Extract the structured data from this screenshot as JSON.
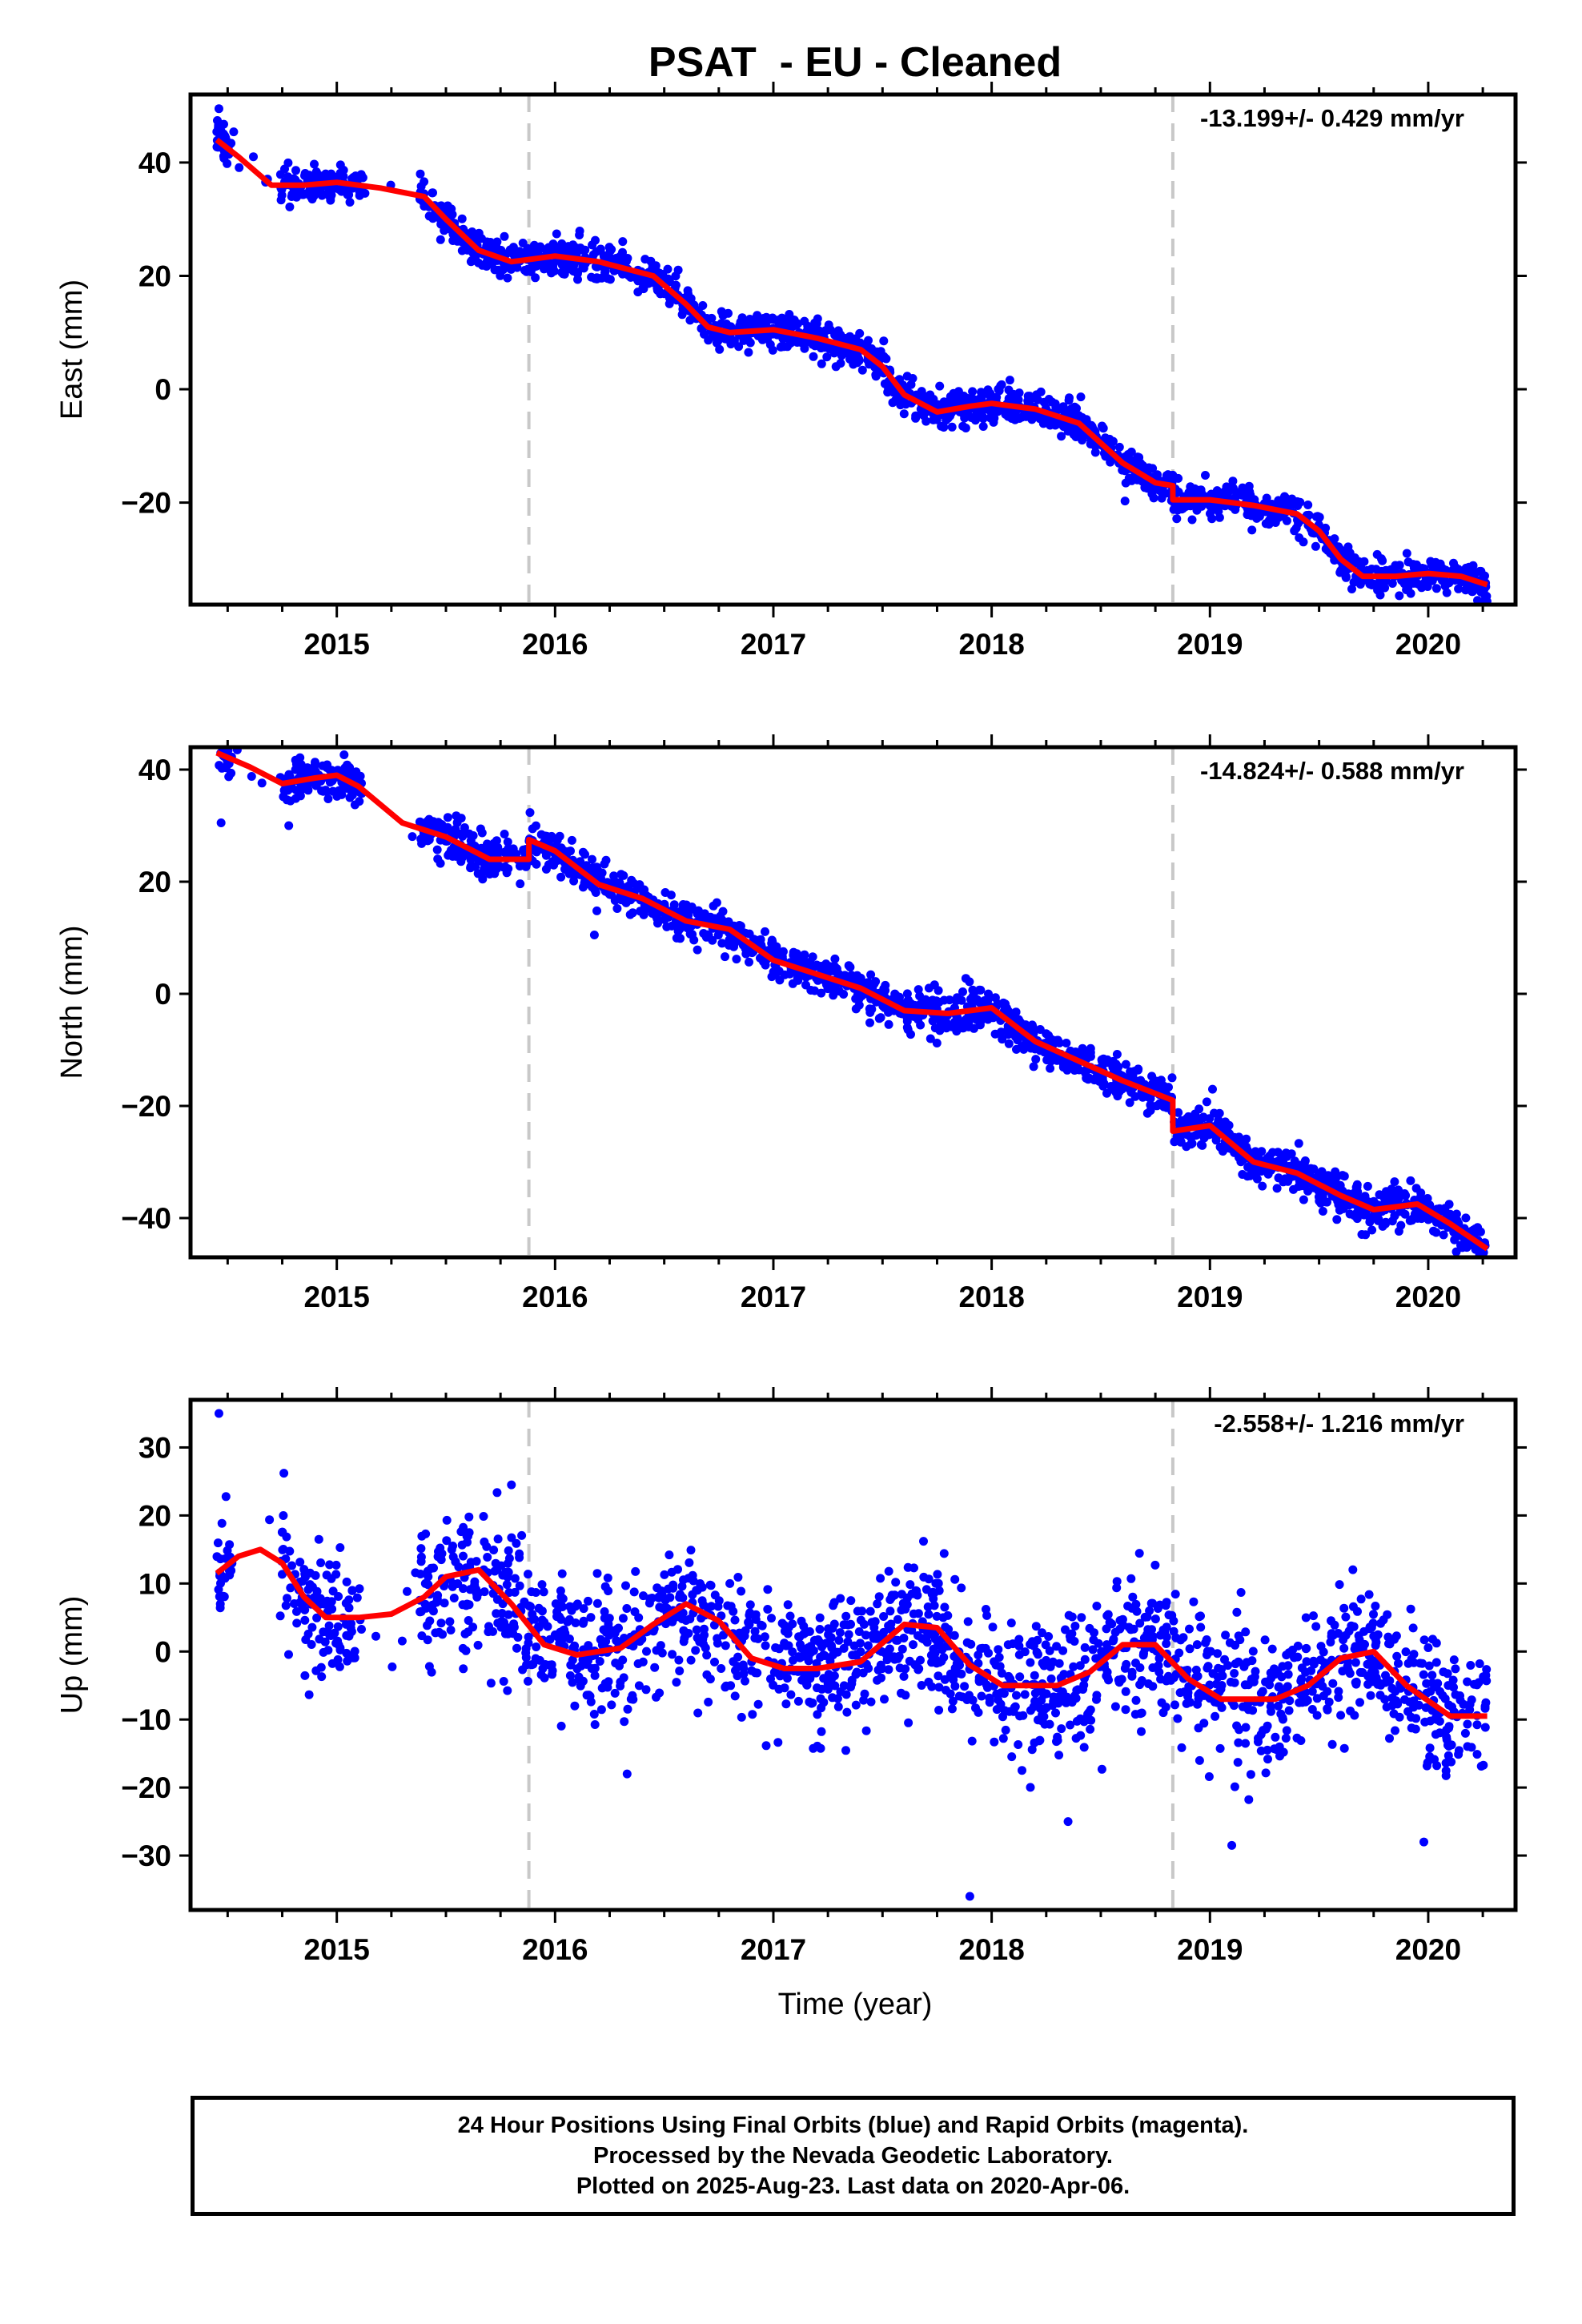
{
  "title": "PSAT  - EU - Cleaned",
  "xlabel": "Time (year)",
  "footer": {
    "line1": "24 Hour Positions Using Final Orbits (blue) and Rapid Orbits (magenta).",
    "line2": "Processed by the Nevada Geodetic Laboratory.",
    "line3": "Plotted on 2025-Aug-23. Last data on 2020-Apr-06."
  },
  "colors": {
    "points": "#0000ff",
    "fit": "#ff0000",
    "breaks": "#c8c8c8",
    "frame": "#000000"
  },
  "chart_data": [
    {
      "type": "scatter",
      "component": "east",
      "ylabel": "East (mm)",
      "rate_label": "-13.199+/- 0.429 mm/yr",
      "xlim": [
        2014.33,
        2020.4
      ],
      "ylim": [
        -38,
        52
      ],
      "yticks": [
        40,
        20,
        0,
        -20
      ],
      "ytick_labels": [
        "40",
        "20",
        "0",
        "−20"
      ],
      "xticks": [
        2015,
        2016,
        2017,
        2018,
        2019,
        2020
      ],
      "xtick_labels": [
        "2015",
        "2016",
        "2017",
        "2018",
        "2019",
        "2020"
      ],
      "breaks": [
        2015.88,
        2018.83
      ],
      "data_range": [
        2014.45,
        2020.27
      ],
      "points_per_year": 330,
      "scatter_sigma": 1.6,
      "fit_curve": {
        "x": [
          2014.45,
          2014.55,
          2014.7,
          2014.85,
          2015.0,
          2015.2,
          2015.4,
          2015.5,
          2015.65,
          2015.8,
          2015.9,
          2016.0,
          2016.2,
          2016.45,
          2016.6,
          2016.7,
          2016.8,
          2017.0,
          2017.2,
          2017.4,
          2017.5,
          2017.6,
          2017.75,
          2017.9,
          2018.0,
          2018.2,
          2018.4,
          2018.6,
          2018.75,
          2018.83,
          2018.83,
          2019.0,
          2019.2,
          2019.4,
          2019.5,
          2019.6,
          2019.7,
          2019.85,
          2020.0,
          2020.15,
          2020.27
        ],
        "y": [
          44,
          41,
          36,
          36,
          36.5,
          35.5,
          34,
          30,
          24.5,
          22.5,
          23,
          23.5,
          22.5,
          20,
          15,
          11,
          10,
          10.5,
          9,
          7,
          4,
          -1,
          -4,
          -3,
          -2.5,
          -3.5,
          -6,
          -13,
          -16.5,
          -17,
          -19.5,
          -19.5,
          -20.5,
          -22,
          -25,
          -30,
          -33,
          -33,
          -32.5,
          -33,
          -34.5
        ]
      },
      "outliers": [
        {
          "x": 2014.46,
          "y": 49.5
        },
        {
          "x": 2014.47,
          "y": 46.5
        },
        {
          "x": 2015.06,
          "y": 33.0
        }
      ]
    },
    {
      "type": "scatter",
      "component": "north",
      "ylabel": "North (mm)",
      "rate_label": "-14.824+/- 0.588 mm/yr",
      "xlim": [
        2014.33,
        2020.4
      ],
      "ylim": [
        -47,
        44
      ],
      "yticks": [
        40,
        20,
        0,
        -20,
        -40
      ],
      "ytick_labels": [
        "40",
        "20",
        "0",
        "−20",
        "−40"
      ],
      "xticks": [
        2015,
        2016,
        2017,
        2018,
        2019,
        2020
      ],
      "xtick_labels": [
        "2015",
        "2016",
        "2017",
        "2018",
        "2019",
        "2020"
      ],
      "breaks": [
        2015.88,
        2018.83
      ],
      "data_range": [
        2014.45,
        2020.27
      ],
      "points_per_year": 330,
      "scatter_sigma": 1.8,
      "fit_curve": {
        "x": [
          2014.45,
          2014.6,
          2014.75,
          2014.9,
          2015.0,
          2015.1,
          2015.3,
          2015.5,
          2015.7,
          2015.88,
          2015.88,
          2016.0,
          2016.2,
          2016.4,
          2016.6,
          2016.8,
          2017.0,
          2017.2,
          2017.4,
          2017.6,
          2017.8,
          2018.0,
          2018.2,
          2018.4,
          2018.6,
          2018.83,
          2018.83,
          2019.0,
          2019.2,
          2019.4,
          2019.6,
          2019.75,
          2019.95,
          2020.1,
          2020.27
        ],
        "y": [
          43,
          40.5,
          37.5,
          38.5,
          39,
          37,
          30.5,
          28,
          24,
          24,
          27.5,
          25.5,
          19.5,
          17,
          13,
          11.5,
          6,
          3.5,
          1,
          -3,
          -3.5,
          -2.5,
          -8.5,
          -12,
          -15.5,
          -19,
          -24.5,
          -23.5,
          -30,
          -32,
          -36,
          -38.5,
          -37.5,
          -41,
          -45.5
        ]
      },
      "outliers": [
        {
          "x": 2014.47,
          "y": 30.5
        },
        {
          "x": 2014.78,
          "y": 30.0
        },
        {
          "x": 2015.06,
          "y": 35.0
        },
        {
          "x": 2016.18,
          "y": 10.5
        },
        {
          "x": 2017.72,
          "y": -8.0
        }
      ]
    },
    {
      "type": "scatter",
      "component": "up",
      "ylabel": "Up (mm)",
      "rate_label": "-2.558+/- 1.216 mm/yr",
      "xlim": [
        2014.33,
        2020.4
      ],
      "ylim": [
        -38,
        37
      ],
      "yticks": [
        30,
        20,
        10,
        0,
        -10,
        -20,
        -30
      ],
      "ytick_labels": [
        "30",
        "20",
        "10",
        "0",
        "−10",
        "−20",
        "−30"
      ],
      "xticks": [
        2015,
        2016,
        2017,
        2018,
        2019,
        2020
      ],
      "xtick_labels": [
        "2015",
        "2016",
        "2017",
        "2018",
        "2019",
        "2020"
      ],
      "breaks": [
        2015.88,
        2018.83
      ],
      "data_range": [
        2014.45,
        2020.27
      ],
      "points_per_year": 330,
      "scatter_sigma": 4.8,
      "fit_curve": {
        "x": [
          2014.45,
          2014.55,
          2014.65,
          2014.75,
          2014.85,
          2014.95,
          2015.1,
          2015.25,
          2015.4,
          2015.5,
          2015.65,
          2015.8,
          2015.95,
          2016.1,
          2016.3,
          2016.45,
          2016.6,
          2016.75,
          2016.9,
          2017.05,
          2017.2,
          2017.4,
          2017.6,
          2017.75,
          2017.9,
          2018.05,
          2018.3,
          2018.45,
          2018.6,
          2018.75,
          2018.9,
          2019.05,
          2019.3,
          2019.45,
          2019.6,
          2019.75,
          2019.9,
          2020.1,
          2020.27
        ],
        "y": [
          11.5,
          14,
          15,
          13,
          8,
          5,
          5,
          5.5,
          8,
          11,
          12,
          7,
          1,
          -0.5,
          0.5,
          4,
          7,
          4.5,
          -1,
          -2.5,
          -2.5,
          -1.5,
          4,
          3.5,
          -2,
          -5,
          -5,
          -3,
          1,
          1,
          -4,
          -7,
          -7,
          -5,
          -1,
          0,
          -5,
          -9.5,
          -9.5
        ]
      },
      "outliers": [
        {
          "x": 2014.46,
          "y": 35.0
        },
        {
          "x": 2015.8,
          "y": 24.5
        },
        {
          "x": 2016.33,
          "y": -18.0
        },
        {
          "x": 2017.9,
          "y": -36.0
        },
        {
          "x": 2019.1,
          "y": -28.5
        },
        {
          "x": 2019.98,
          "y": -28.0
        },
        {
          "x": 2018.35,
          "y": -25.0
        }
      ]
    }
  ]
}
